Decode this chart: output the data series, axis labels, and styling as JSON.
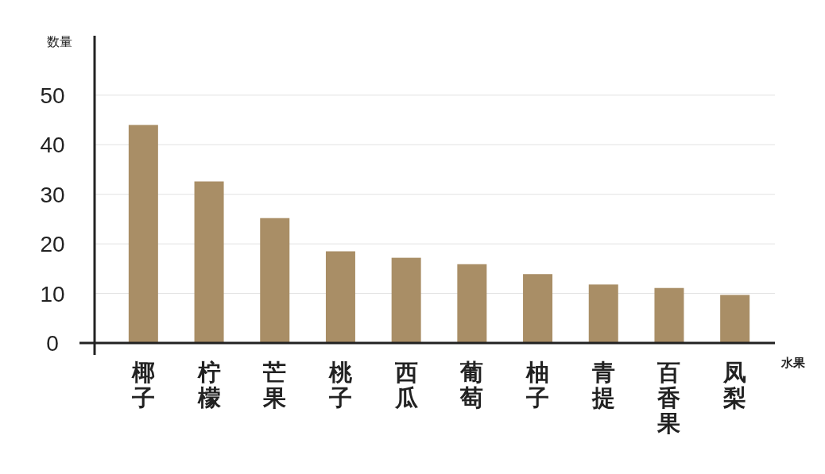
{
  "chart_data": {
    "type": "bar",
    "xlabel": "水果",
    "ylabel": "数量",
    "categories": [
      "椰子",
      "柠檬",
      "芒果",
      "桃子",
      "西瓜",
      "葡萄",
      "柚子",
      "青提",
      "百香果",
      "凤梨"
    ],
    "values": [
      44.0,
      32.6,
      25.2,
      18.5,
      17.2,
      15.9,
      13.9,
      11.8,
      11.1,
      9.7
    ],
    "color": "#a98e66",
    "ylim": [
      0,
      62
    ],
    "yticks": [
      0,
      10,
      20,
      30,
      40,
      50
    ],
    "grid": "y"
  }
}
